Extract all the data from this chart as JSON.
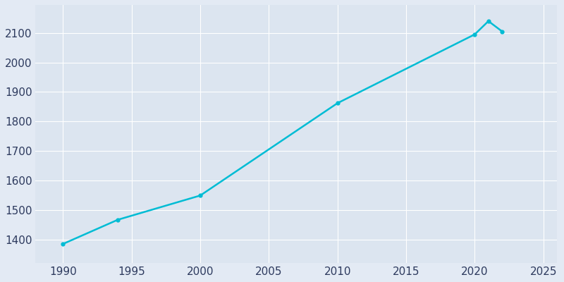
{
  "years": [
    1990,
    1994,
    2000,
    2010,
    2020,
    2021,
    2022
  ],
  "population": [
    1385,
    1467,
    1549,
    1862,
    2095,
    2140,
    2105
  ],
  "line_color": "#00bcd4",
  "bg_color": "#e3eaf4",
  "plot_bg_color": "#dce5f0",
  "text_color": "#2d3a5e",
  "grid_color": "#ffffff",
  "xlim": [
    1988,
    2026
  ],
  "ylim": [
    1320,
    2195
  ],
  "xticks": [
    1990,
    1995,
    2000,
    2005,
    2010,
    2015,
    2020,
    2025
  ],
  "yticks": [
    1400,
    1500,
    1600,
    1700,
    1800,
    1900,
    2000,
    2100
  ],
  "line_width": 1.8,
  "marker": "o",
  "marker_size": 3.5
}
